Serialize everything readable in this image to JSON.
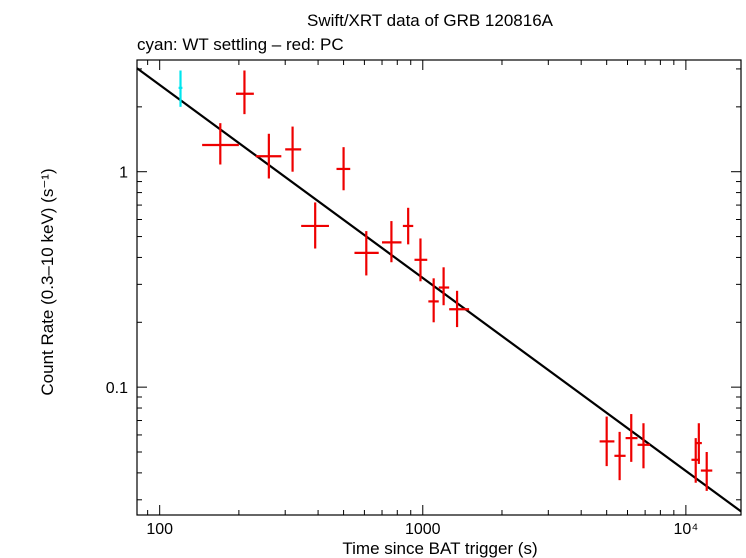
{
  "chart_data": {
    "type": "scatter",
    "title": "Swift/XRT data of GRB 120816A",
    "subtitle": "cyan: WT settling – red: PC",
    "xlabel": "Time since BAT trigger (s)",
    "ylabel": "Count Rate (0.3–10 keV) (s⁻¹)",
    "xscale": "log",
    "yscale": "log",
    "xlim": [
      82,
      16200
    ],
    "ylim": [
      0.0255,
      3.3
    ],
    "x_ticks": [
      {
        "value": 100,
        "label": "100"
      },
      {
        "value": 1000,
        "label": "1000"
      },
      {
        "value": 10000,
        "label": "10⁴"
      }
    ],
    "y_ticks": [
      {
        "value": 0.1,
        "label": "0.1"
      },
      {
        "value": 1,
        "label": "1"
      }
    ],
    "series": [
      {
        "color": "#00e5ee",
        "points": [
          {
            "x": 120,
            "y": 2.45,
            "xlo": 118,
            "xhi": 122,
            "ylo": 2.0,
            "yhi": 2.95
          }
        ]
      },
      {
        "color": "#ee0000",
        "points": [
          {
            "x": 170,
            "y": 1.33,
            "xlo": 145,
            "xhi": 200,
            "ylo": 1.08,
            "yhi": 1.68
          },
          {
            "x": 210,
            "y": 2.3,
            "xlo": 195,
            "xhi": 228,
            "ylo": 1.85,
            "yhi": 2.95
          },
          {
            "x": 260,
            "y": 1.18,
            "xlo": 232,
            "xhi": 290,
            "ylo": 0.93,
            "yhi": 1.5
          },
          {
            "x": 320,
            "y": 1.27,
            "xlo": 300,
            "xhi": 345,
            "ylo": 1.0,
            "yhi": 1.62
          },
          {
            "x": 390,
            "y": 0.56,
            "xlo": 345,
            "xhi": 440,
            "ylo": 0.44,
            "yhi": 0.72
          },
          {
            "x": 500,
            "y": 1.03,
            "xlo": 470,
            "xhi": 530,
            "ylo": 0.82,
            "yhi": 1.3
          },
          {
            "x": 610,
            "y": 0.42,
            "xlo": 550,
            "xhi": 680,
            "ylo": 0.33,
            "yhi": 0.53
          },
          {
            "x": 760,
            "y": 0.47,
            "xlo": 700,
            "xhi": 830,
            "ylo": 0.38,
            "yhi": 0.59
          },
          {
            "x": 880,
            "y": 0.56,
            "xlo": 840,
            "xhi": 920,
            "ylo": 0.46,
            "yhi": 0.68
          },
          {
            "x": 980,
            "y": 0.39,
            "xlo": 930,
            "xhi": 1040,
            "ylo": 0.31,
            "yhi": 0.49
          },
          {
            "x": 1100,
            "y": 0.25,
            "xlo": 1050,
            "xhi": 1150,
            "ylo": 0.2,
            "yhi": 0.32
          },
          {
            "x": 1200,
            "y": 0.29,
            "xlo": 1150,
            "xhi": 1260,
            "ylo": 0.24,
            "yhi": 0.36
          },
          {
            "x": 1350,
            "y": 0.23,
            "xlo": 1260,
            "xhi": 1500,
            "ylo": 0.19,
            "yhi": 0.28
          },
          {
            "x": 5000,
            "y": 0.056,
            "xlo": 4700,
            "xhi": 5350,
            "ylo": 0.043,
            "yhi": 0.073
          },
          {
            "x": 5600,
            "y": 0.048,
            "xlo": 5350,
            "xhi": 5900,
            "ylo": 0.037,
            "yhi": 0.062
          },
          {
            "x": 6200,
            "y": 0.058,
            "xlo": 5900,
            "xhi": 6550,
            "ylo": 0.045,
            "yhi": 0.075
          },
          {
            "x": 6900,
            "y": 0.054,
            "xlo": 6550,
            "xhi": 7300,
            "ylo": 0.042,
            "yhi": 0.068
          },
          {
            "x": 10900,
            "y": 0.046,
            "xlo": 10500,
            "xhi": 11300,
            "ylo": 0.036,
            "yhi": 0.058
          },
          {
            "x": 11200,
            "y": 0.055,
            "xlo": 10900,
            "xhi": 11500,
            "ylo": 0.044,
            "yhi": 0.068
          },
          {
            "x": 12000,
            "y": 0.041,
            "xlo": 11400,
            "xhi": 12600,
            "ylo": 0.033,
            "yhi": 0.05
          }
        ]
      }
    ],
    "model_line": {
      "color": "#000000",
      "points": [
        [
          82,
          3.02
        ],
        [
          16200,
          0.0265
        ]
      ]
    }
  }
}
